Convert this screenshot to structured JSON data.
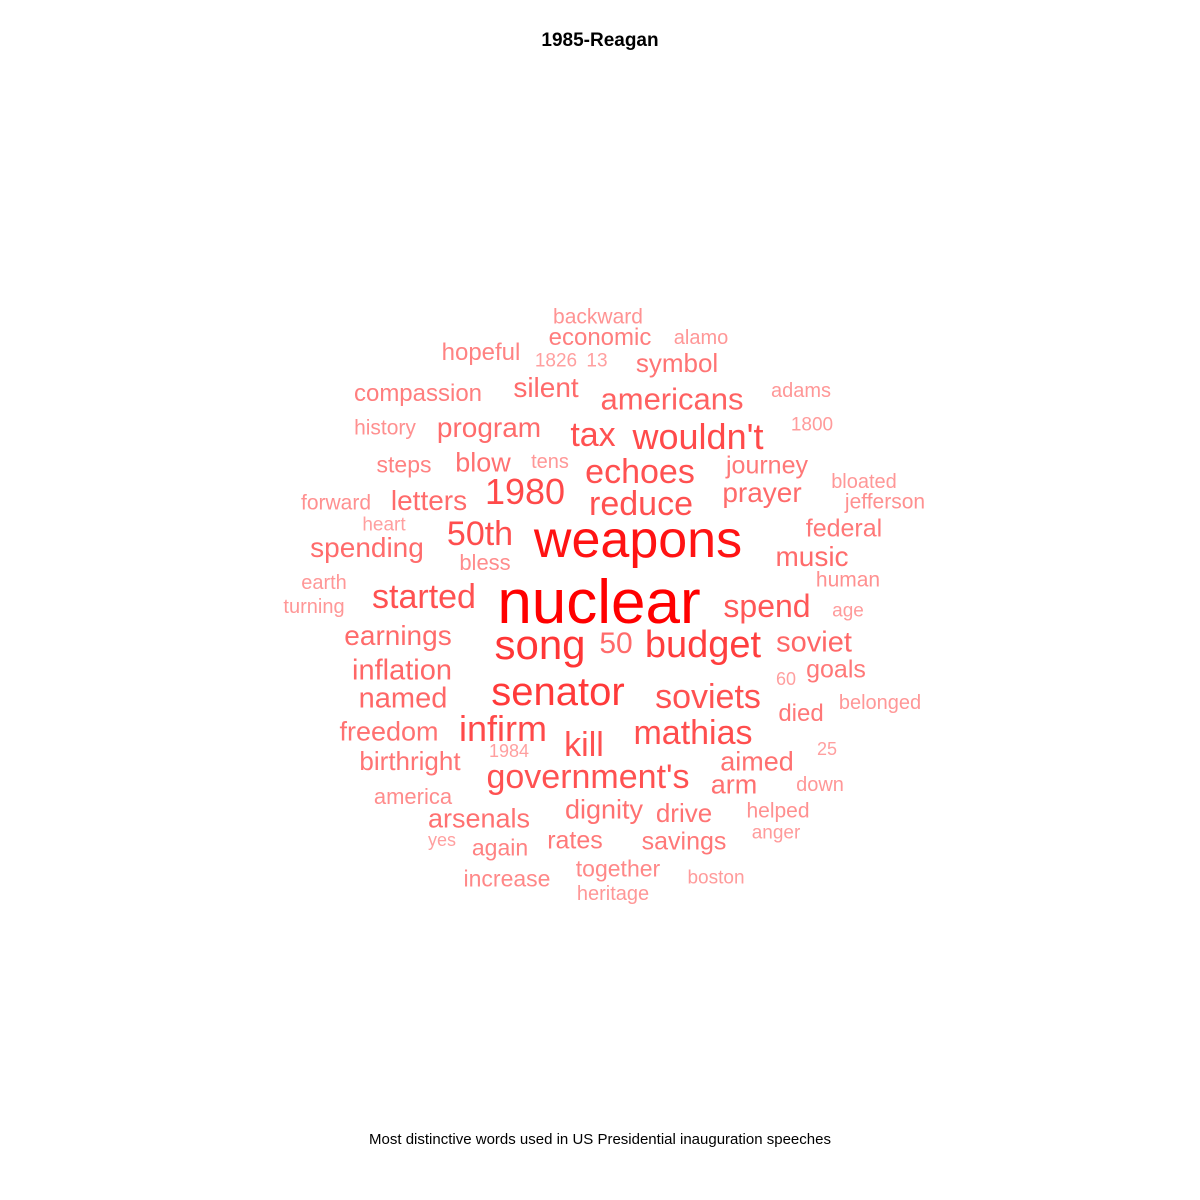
{
  "title": "1985-Reagan",
  "caption": "Most distinctive words used in US Presidential inauguration speeches",
  "colors": {
    "strongest": "#ff0000",
    "weakest": "#ffc2c2"
  },
  "words": [
    {
      "text": "nuclear",
      "weight": 1.0
    },
    {
      "text": "weapons",
      "weight": 0.9
    },
    {
      "text": "song",
      "weight": 0.72
    },
    {
      "text": "senator",
      "weight": 0.7
    },
    {
      "text": "budget",
      "weight": 0.68
    },
    {
      "text": "1980",
      "weight": 0.62
    },
    {
      "text": "wouldn't",
      "weight": 0.62
    },
    {
      "text": "infirm",
      "weight": 0.62
    },
    {
      "text": "50th",
      "weight": 0.6
    },
    {
      "text": "mathias",
      "weight": 0.6
    },
    {
      "text": "reduce",
      "weight": 0.58
    },
    {
      "text": "echoes",
      "weight": 0.58
    },
    {
      "text": "started",
      "weight": 0.58
    },
    {
      "text": "soviets",
      "weight": 0.58
    },
    {
      "text": "government's",
      "weight": 0.58
    },
    {
      "text": "tax",
      "weight": 0.58
    },
    {
      "text": "kill",
      "weight": 0.58
    },
    {
      "text": "spend",
      "weight": 0.55
    },
    {
      "text": "americans",
      "weight": 0.5
    },
    {
      "text": "50",
      "weight": 0.45
    },
    {
      "text": "soviet",
      "weight": 0.47
    },
    {
      "text": "inflation",
      "weight": 0.47
    },
    {
      "text": "named",
      "weight": 0.47
    },
    {
      "text": "earnings",
      "weight": 0.45
    },
    {
      "text": "spending",
      "weight": 0.45
    },
    {
      "text": "letters",
      "weight": 0.45
    },
    {
      "text": "program",
      "weight": 0.45
    },
    {
      "text": "silent",
      "weight": 0.45
    },
    {
      "text": "prayer",
      "weight": 0.45
    },
    {
      "text": "music",
      "weight": 0.45
    },
    {
      "text": "blow",
      "weight": 0.42
    },
    {
      "text": "freedom",
      "weight": 0.42
    },
    {
      "text": "arsenals",
      "weight": 0.42
    },
    {
      "text": "dignity",
      "weight": 0.42
    },
    {
      "text": "aimed",
      "weight": 0.42
    },
    {
      "text": "arm",
      "weight": 0.42
    },
    {
      "text": "drive",
      "weight": 0.4
    },
    {
      "text": "symbol",
      "weight": 0.4
    },
    {
      "text": "birthright",
      "weight": 0.4
    },
    {
      "text": "journey",
      "weight": 0.38
    },
    {
      "text": "goals",
      "weight": 0.38
    },
    {
      "text": "federal",
      "weight": 0.38
    },
    {
      "text": "savings",
      "weight": 0.38
    },
    {
      "text": "rates",
      "weight": 0.38
    },
    {
      "text": "died",
      "weight": 0.38
    },
    {
      "text": "economic",
      "weight": 0.35
    },
    {
      "text": "compassion",
      "weight": 0.35
    },
    {
      "text": "hopeful",
      "weight": 0.33
    },
    {
      "text": "steps",
      "weight": 0.33
    },
    {
      "text": "again",
      "weight": 0.33
    },
    {
      "text": "increase",
      "weight": 0.3
    },
    {
      "text": "together",
      "weight": 0.3
    },
    {
      "text": "america",
      "weight": 0.28
    },
    {
      "text": "history",
      "weight": 0.26
    },
    {
      "text": "bless",
      "weight": 0.28
    },
    {
      "text": "human",
      "weight": 0.26
    },
    {
      "text": "helped",
      "weight": 0.26
    },
    {
      "text": "forward",
      "weight": 0.26
    },
    {
      "text": "jefferson",
      "weight": 0.26
    },
    {
      "text": "backward",
      "weight": 0.24
    },
    {
      "text": "alamo",
      "weight": 0.22
    },
    {
      "text": "adams",
      "weight": 0.22
    },
    {
      "text": "bloated",
      "weight": 0.22
    },
    {
      "text": "tens",
      "weight": 0.22
    },
    {
      "text": "earth",
      "weight": 0.22
    },
    {
      "text": "turning",
      "weight": 0.22
    },
    {
      "text": "belonged",
      "weight": 0.22
    },
    {
      "text": "down",
      "weight": 0.22
    },
    {
      "text": "heritage",
      "weight": 0.22
    },
    {
      "text": "boston",
      "weight": 0.2
    },
    {
      "text": "anger",
      "weight": 0.2
    },
    {
      "text": "age",
      "weight": 0.2
    },
    {
      "text": "1800",
      "weight": 0.2
    },
    {
      "text": "heart",
      "weight": 0.18
    },
    {
      "text": "1826",
      "weight": 0.18
    },
    {
      "text": "13",
      "weight": 0.18
    },
    {
      "text": "60",
      "weight": 0.18
    },
    {
      "text": "25",
      "weight": 0.18
    },
    {
      "text": "1984",
      "weight": 0.18
    },
    {
      "text": "yes",
      "weight": 0.18
    }
  ]
}
